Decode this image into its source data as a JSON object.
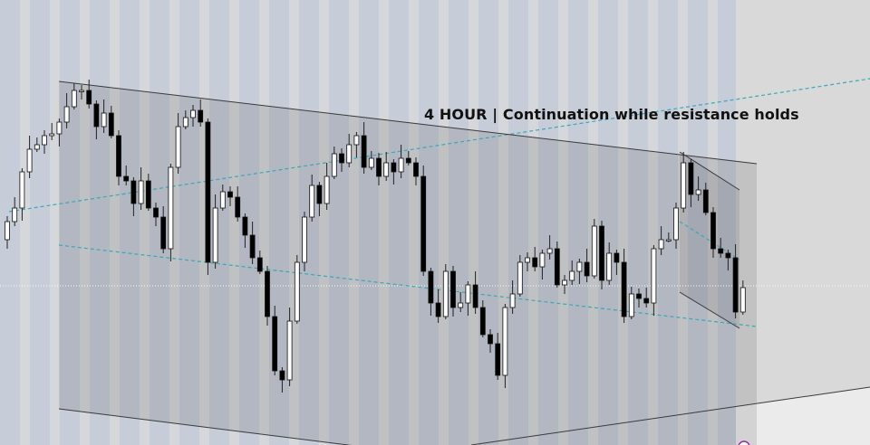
{
  "annotation": {
    "text": "4 HOUR | Continuation while resistance holds"
  },
  "colors": {
    "background": "#d9d9d9",
    "stripe_light": "#d6d7da",
    "stripe_blue": "#c7ccd9",
    "channel_shade": "#000000",
    "dashed_line": "#3aa8b8",
    "trendline": "#3a3a3a",
    "bull_body": "#ffffff",
    "bear_body": "#000000",
    "marker": "#9c27b0"
  },
  "chart_data": {
    "type": "candlestick",
    "timeframe": "4 HOUR",
    "axes_visible": false,
    "grid": false,
    "open": [
      215,
      235,
      250,
      290,
      315,
      320,
      330,
      332,
      345,
      362,
      380,
      380,
      365,
      340,
      355,
      330,
      285,
      280,
      255,
      280,
      250,
      240,
      205,
      295,
      340,
      350,
      358,
      345,
      190,
      250,
      268,
      262,
      240,
      220,
      195,
      180,
      130,
      70,
      60,
      125,
      190,
      240,
      275,
      255,
      285,
      310,
      300,
      320,
      330,
      295,
      305,
      285,
      300,
      290,
      305,
      300,
      285,
      180,
      145,
      130,
      180,
      140,
      145,
      165,
      140,
      110,
      100,
      65,
      140,
      155,
      190,
      195,
      185,
      200,
      205,
      165,
      170,
      180,
      190,
      175,
      230,
      170,
      200,
      190,
      130,
      155,
      150,
      145,
      205,
      215,
      215,
      250,
      300,
      265,
      270,
      245,
      205,
      200,
      195,
      135
    ],
    "high": [
      241,
      262,
      294,
      330,
      328,
      336,
      344,
      349,
      377,
      388,
      386,
      392,
      369,
      370,
      363,
      336,
      297,
      284,
      295,
      288,
      256,
      252,
      299,
      355,
      358,
      364,
      370,
      349,
      265,
      276,
      274,
      274,
      244,
      235,
      203,
      186,
      142,
      74,
      140,
      198,
      246,
      287,
      279,
      300,
      318,
      316,
      332,
      334,
      345,
      313,
      311,
      312,
      304,
      320,
      313,
      306,
      297,
      184,
      160,
      188,
      186,
      157,
      169,
      180,
      148,
      116,
      112,
      144,
      170,
      198,
      201,
      207,
      204,
      220,
      213,
      176,
      192,
      194,
      205,
      238,
      236,
      212,
      204,
      205,
      163,
      161,
      162,
      209,
      230,
      223,
      256,
      312,
      304,
      285,
      278,
      251,
      217,
      204,
      210,
      170
    ],
    "low": [
      205,
      230,
      236,
      283,
      312,
      310,
      325,
      318,
      338,
      359,
      370,
      360,
      326,
      333,
      327,
      275,
      275,
      241,
      248,
      247,
      230,
      200,
      191,
      288,
      337,
      340,
      340,
      176,
      183,
      247,
      252,
      235,
      206,
      188,
      177,
      120,
      65,
      46,
      53,
      122,
      180,
      235,
      241,
      248,
      282,
      290,
      295,
      306,
      288,
      292,
      275,
      280,
      276,
      283,
      297,
      275,
      175,
      131,
      123,
      127,
      130,
      135,
      131,
      133,
      107,
      90,
      60,
      51,
      133,
      152,
      180,
      180,
      171,
      193,
      162,
      155,
      165,
      166,
      168,
      172,
      160,
      165,
      176,
      123,
      127,
      140,
      140,
      131,
      198,
      212,
      205,
      245,
      251,
      258,
      242,
      195,
      195,
      181,
      128,
      132
    ],
    "close": [
      235,
      250,
      290,
      315,
      320,
      330,
      332,
      345,
      362,
      380,
      380,
      365,
      340,
      355,
      330,
      285,
      280,
      255,
      280,
      250,
      240,
      205,
      295,
      340,
      350,
      358,
      345,
      190,
      250,
      268,
      262,
      240,
      220,
      195,
      180,
      130,
      70,
      60,
      125,
      190,
      240,
      275,
      255,
      285,
      310,
      300,
      320,
      330,
      295,
      305,
      285,
      300,
      290,
      305,
      300,
      285,
      180,
      145,
      130,
      180,
      140,
      145,
      165,
      140,
      110,
      100,
      65,
      140,
      155,
      190,
      195,
      185,
      200,
      205,
      165,
      170,
      180,
      190,
      175,
      230,
      170,
      200,
      190,
      130,
      155,
      150,
      145,
      205,
      215,
      215,
      250,
      300,
      265,
      270,
      245,
      205,
      200,
      195,
      135,
      162
    ]
  }
}
